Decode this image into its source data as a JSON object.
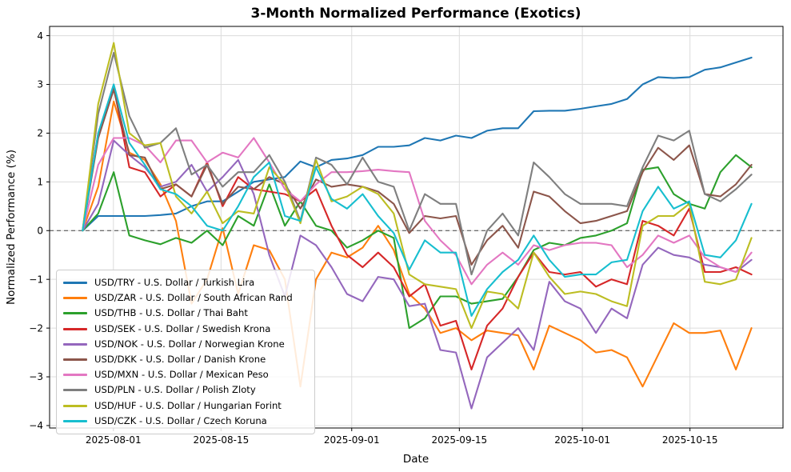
{
  "title": "3-Month Normalized Performance (Exotics)",
  "chart_data": {
    "type": "line",
    "title": "3-Month Normalized Performance (Exotics)",
    "xlabel": "Date",
    "ylabel": "Normalized Performance (%)",
    "x_range": [
      "2025-07-28",
      "2025-10-23"
    ],
    "sampling_note": "each series sampled at ~2-day intervals across the 3-month window",
    "x_day_span": [
      0,
      87
    ],
    "xlim_days": [
      -4.3,
      91.1
    ],
    "ylim": [
      -4.05,
      4.19
    ],
    "grid": true,
    "zero_line": true,
    "legend_position": "lower left",
    "x_ticks": [
      {
        "label": "2025-08-01",
        "day": 4
      },
      {
        "label": "2025-08-15",
        "day": 18
      },
      {
        "label": "2025-09-01",
        "day": 35
      },
      {
        "label": "2025-09-15",
        "day": 49
      },
      {
        "label": "2025-10-01",
        "day": 65
      },
      {
        "label": "2025-10-15",
        "day": 79
      }
    ],
    "y_ticks": [
      {
        "v": 4,
        "label": "4"
      },
      {
        "v": 3,
        "label": "3"
      },
      {
        "v": 2,
        "label": "2"
      },
      {
        "v": 1,
        "label": "1"
      },
      {
        "v": 0,
        "label": "0"
      },
      {
        "v": -1,
        "label": "−1"
      },
      {
        "v": -2,
        "label": "−2"
      },
      {
        "v": -3,
        "label": "−3"
      },
      {
        "v": -4,
        "label": "−4"
      }
    ],
    "series": [
      {
        "name": "USD/TRY - U.S. Dollar / Turkish Lira",
        "color": "#1f77b4",
        "values": [
          0,
          0.3,
          0.3,
          0.3,
          0.3,
          0.32,
          0.35,
          0.5,
          0.6,
          0.6,
          0.8,
          1.0,
          1.05,
          1.1,
          1.42,
          1.3,
          1.45,
          1.48,
          1.55,
          1.72,
          1.72,
          1.75,
          1.9,
          1.85,
          1.95,
          1.9,
          2.05,
          2.1,
          2.1,
          2.45,
          2.46,
          2.46,
          2.5,
          2.55,
          2.6,
          2.7,
          3.0,
          3.15,
          3.13,
          3.15,
          3.3,
          3.35,
          3.45,
          3.55
        ]
      },
      {
        "name": "USD/ZAR - U.S. Dollar / South African Rand",
        "color": "#ff7f0e",
        "values": [
          0,
          0.9,
          2.65,
          1.6,
          1.45,
          0.95,
          0.2,
          -1.5,
          -1.0,
          0.05,
          -1.3,
          -0.3,
          -0.4,
          -1.0,
          -3.2,
          -1.0,
          -0.45,
          -0.55,
          -0.35,
          0.1,
          -0.4,
          -1.3,
          -1.6,
          -2.1,
          -2.0,
          -2.25,
          -2.05,
          -2.1,
          -2.15,
          -2.85,
          -1.95,
          -2.1,
          -2.25,
          -2.5,
          -2.45,
          -2.6,
          -3.2,
          -2.55,
          -1.9,
          -2.1,
          -2.1,
          -2.05,
          -2.85,
          -2.0
        ]
      },
      {
        "name": "USD/THB - U.S. Dollar / Thai Baht",
        "color": "#2ca02c",
        "values": [
          0,
          0.35,
          1.2,
          -0.1,
          -0.2,
          -0.28,
          -0.15,
          -0.25,
          0.0,
          -0.3,
          0.3,
          0.1,
          0.95,
          0.1,
          0.6,
          0.1,
          0.0,
          -0.35,
          -0.2,
          0.0,
          -0.15,
          -2.0,
          -1.8,
          -1.35,
          -1.35,
          -1.5,
          -1.45,
          -1.4,
          -0.95,
          -0.4,
          -0.25,
          -0.3,
          -0.15,
          -0.1,
          0.0,
          0.15,
          1.25,
          1.3,
          0.75,
          0.55,
          0.45,
          1.2,
          1.55,
          1.3
        ]
      },
      {
        "name": "USD/SEK - U.S. Dollar / Swedish Krona",
        "color": "#d62728",
        "values": [
          0,
          2.0,
          2.95,
          1.3,
          1.2,
          0.7,
          0.95,
          0.7,
          1.4,
          0.5,
          1.1,
          0.85,
          0.8,
          0.75,
          0.6,
          0.85,
          0.1,
          -0.5,
          -0.75,
          -0.45,
          -0.75,
          -1.35,
          -1.1,
          -1.95,
          -1.85,
          -2.85,
          -1.95,
          -1.6,
          -0.95,
          -0.45,
          -0.85,
          -0.9,
          -0.85,
          -1.15,
          -1.0,
          -1.1,
          0.2,
          0.1,
          -0.1,
          0.45,
          -0.85,
          -0.85,
          -0.75,
          -0.9
        ]
      },
      {
        "name": "USD/NOK - U.S. Dollar / Norwegian Krone",
        "color": "#9467bd",
        "values": [
          0,
          0.55,
          1.85,
          1.55,
          1.3,
          0.9,
          1.0,
          1.35,
          0.8,
          1.1,
          1.45,
          0.75,
          -0.5,
          -1.35,
          -0.1,
          -0.3,
          -0.75,
          -1.3,
          -1.45,
          -0.95,
          -1.0,
          -1.55,
          -1.5,
          -2.45,
          -2.5,
          -3.65,
          -2.6,
          -2.3,
          -2.0,
          -2.45,
          -1.05,
          -1.45,
          -1.6,
          -2.1,
          -1.6,
          -1.8,
          -0.7,
          -0.35,
          -0.5,
          -0.55,
          -0.7,
          -0.75,
          -0.85,
          -0.6
        ]
      },
      {
        "name": "USD/DKK - U.S. Dollar / Danish Krone",
        "color": "#8c564b",
        "values": [
          0,
          1.9,
          2.9,
          1.55,
          1.5,
          0.85,
          0.95,
          0.7,
          1.35,
          0.55,
          0.9,
          0.85,
          1.1,
          0.95,
          0.45,
          1.05,
          0.9,
          0.95,
          0.9,
          0.8,
          0.55,
          -0.05,
          0.3,
          0.25,
          0.3,
          -0.7,
          -0.2,
          0.1,
          -0.35,
          0.8,
          0.7,
          0.4,
          0.15,
          0.2,
          0.3,
          0.4,
          1.2,
          1.7,
          1.45,
          1.75,
          0.75,
          0.7,
          0.95,
          1.35
        ]
      },
      {
        "name": "USD/MXN - U.S. Dollar / Mexican Peso",
        "color": "#e377c2",
        "values": [
          0,
          1.35,
          1.9,
          1.9,
          1.75,
          1.4,
          1.85,
          1.85,
          1.4,
          1.6,
          1.5,
          1.9,
          1.4,
          0.85,
          0.6,
          0.95,
          1.2,
          1.2,
          1.22,
          1.25,
          1.22,
          1.2,
          0.2,
          -0.2,
          -0.5,
          -1.1,
          -0.7,
          -0.45,
          -0.7,
          -0.3,
          -0.4,
          -0.3,
          -0.25,
          -0.25,
          -0.3,
          -0.75,
          -0.5,
          -0.1,
          -0.25,
          -0.1,
          -0.55,
          -0.75,
          -0.85,
          -0.45
        ]
      },
      {
        "name": "USD/PLN - U.S. Dollar / Polish Zloty",
        "color": "#7f7f7f",
        "values": [
          0,
          2.4,
          3.65,
          2.35,
          1.7,
          1.8,
          2.1,
          1.15,
          1.35,
          0.9,
          1.2,
          1.2,
          1.55,
          1.0,
          0.2,
          1.5,
          1.35,
          0.95,
          1.5,
          1.0,
          0.9,
          0.0,
          0.75,
          0.55,
          0.55,
          -0.9,
          0.0,
          0.35,
          -0.1,
          1.4,
          1.1,
          0.75,
          0.55,
          0.55,
          0.55,
          0.5,
          1.3,
          1.95,
          1.85,
          2.05,
          0.75,
          0.6,
          0.85,
          1.15
        ]
      },
      {
        "name": "USD/HUF - U.S. Dollar / Hungarian Forint",
        "color": "#bcbd22",
        "values": [
          0,
          2.6,
          3.85,
          2.0,
          1.75,
          1.8,
          0.7,
          0.35,
          0.8,
          0.15,
          0.4,
          0.35,
          1.3,
          0.95,
          0.15,
          1.45,
          0.6,
          0.7,
          0.9,
          0.75,
          0.35,
          -0.9,
          -1.1,
          -1.15,
          -1.2,
          -2.0,
          -1.25,
          -1.3,
          -1.6,
          -0.45,
          -0.95,
          -1.3,
          -1.25,
          -1.3,
          -1.45,
          -1.55,
          0.1,
          0.3,
          0.3,
          0.55,
          -1.05,
          -1.1,
          -1.0,
          -0.15
        ]
      },
      {
        "name": "USD/CZK - U.S. Dollar / Czech Koruna",
        "color": "#17becf",
        "values": [
          0,
          2.0,
          3.0,
          1.8,
          1.35,
          0.85,
          0.75,
          0.5,
          0.1,
          0.0,
          0.5,
          1.1,
          1.4,
          0.3,
          0.2,
          1.3,
          0.65,
          0.45,
          0.75,
          0.3,
          -0.05,
          -0.8,
          -0.2,
          -0.45,
          -0.45,
          -1.75,
          -1.2,
          -0.85,
          -0.6,
          -0.1,
          -0.6,
          -0.95,
          -0.9,
          -0.9,
          -0.65,
          -0.6,
          0.4,
          0.9,
          0.45,
          0.6,
          -0.5,
          -0.55,
          -0.2,
          0.55
        ]
      }
    ]
  }
}
